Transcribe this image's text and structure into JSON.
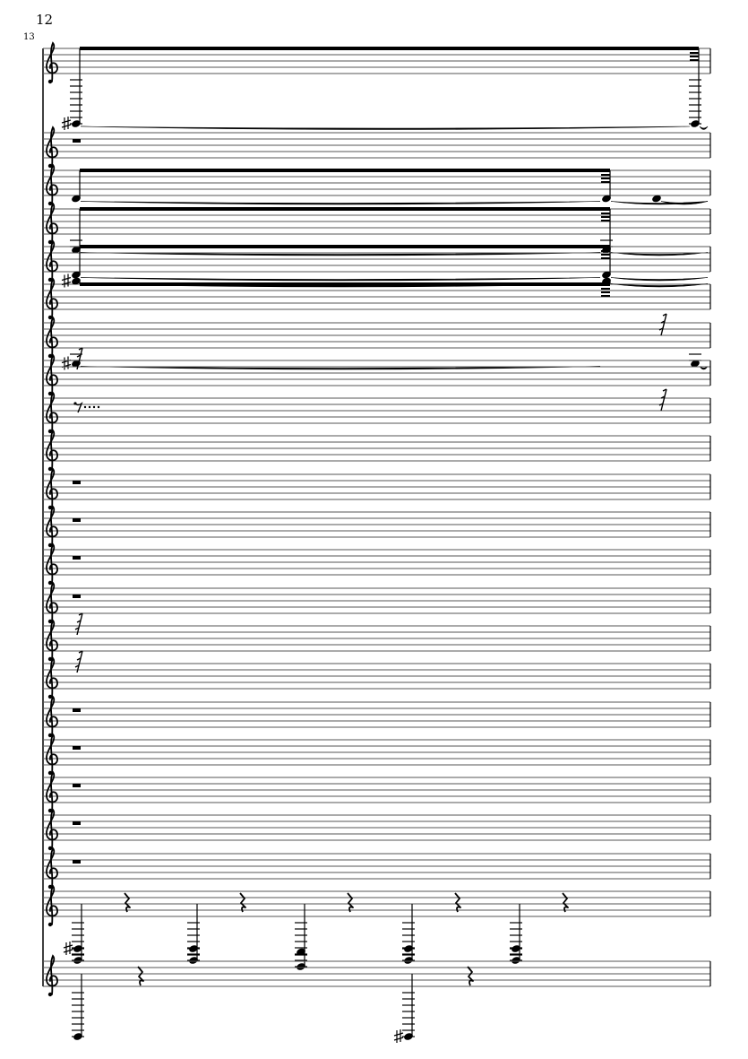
{
  "page": {
    "page_number": "12",
    "measure_number": "13"
  },
  "colors": {
    "ink": "#000000",
    "staff_line": "#555555"
  },
  "staves": [
    {
      "clef": "treble",
      "events": [
        {
          "type": "note",
          "pos": -16,
          "sharp": true,
          "tie": true,
          "beamed": true
        },
        {
          "type": "note",
          "pos": -16,
          "beam_end": true,
          "tie": true
        }
      ]
    },
    {
      "clef": "treble",
      "events": [
        {
          "type": "whole-rest"
        }
      ]
    },
    {
      "clef": "treble",
      "events": [
        {
          "type": "note",
          "pos": -1,
          "tie": true,
          "beamed": true
        },
        {
          "type": "note",
          "pos": -1,
          "tie": true,
          "beam_end": true
        },
        {
          "type": "note",
          "pos": -1,
          "tie": true
        }
      ]
    },
    {
      "clef": "treble",
      "events": [
        {
          "type": "note",
          "pos": -5,
          "tie": true,
          "beamed": true
        },
        {
          "type": "note",
          "pos": -5,
          "tie": true,
          "beam_end": true
        }
      ]
    },
    {
      "clef": "treble",
      "events": [
        {
          "type": "note",
          "pos": -1,
          "tie": true,
          "beamed": true
        },
        {
          "type": "note",
          "pos": -1,
          "tie": true,
          "beam_end": true
        }
      ]
    },
    {
      "clef": "treble",
      "events": [
        {
          "type": "note",
          "pos": 9,
          "sharp": true,
          "tie": true,
          "beamed": true
        },
        {
          "type": "note",
          "pos": 9,
          "tie": true,
          "beam_end": true
        }
      ]
    },
    {
      "clef": "treble",
      "events": [
        {
          "type": "note",
          "pos": -5,
          "sharp": true,
          "tie": true
        },
        {
          "type": "note",
          "pos": -5,
          "tie": true
        },
        {
          "type": "small-rest"
        }
      ]
    },
    {
      "clef": "treble",
      "events": [
        {
          "type": "small-rest"
        }
      ]
    },
    {
      "clef": "treble",
      "events": [
        {
          "type": "eighth-rest-dots"
        },
        {
          "type": "small-rest"
        }
      ]
    },
    {
      "clef": "treble",
      "events": []
    },
    {
      "clef": "treble",
      "events": [
        {
          "type": "whole-rest"
        }
      ]
    },
    {
      "clef": "treble",
      "events": [
        {
          "type": "whole-rest"
        }
      ]
    },
    {
      "clef": "treble",
      "events": [
        {
          "type": "whole-rest"
        }
      ]
    },
    {
      "clef": "treble",
      "events": [
        {
          "type": "whole-rest"
        }
      ]
    },
    {
      "clef": "treble",
      "events": [
        {
          "type": "small-rest"
        }
      ]
    },
    {
      "clef": "treble",
      "events": [
        {
          "type": "small-rest"
        }
      ]
    },
    {
      "clef": "treble",
      "events": [
        {
          "type": "whole-rest"
        }
      ]
    },
    {
      "clef": "treble",
      "events": [
        {
          "type": "whole-rest"
        }
      ]
    },
    {
      "clef": "treble",
      "events": [
        {
          "type": "whole-rest"
        }
      ]
    },
    {
      "clef": "treble",
      "events": [
        {
          "type": "whole-rest"
        }
      ]
    },
    {
      "clef": "treble",
      "events": [
        {
          "type": "whole-rest"
        }
      ]
    },
    {
      "clef": "treble",
      "events": [
        {
          "type": "quarter-pattern",
          "notes": [
            -14,
            -14,
            -16,
            -14,
            -14
          ]
        }
      ]
    },
    {
      "clef": "treble",
      "events": [
        {
          "type": "lower-pattern"
        }
      ]
    }
  ]
}
